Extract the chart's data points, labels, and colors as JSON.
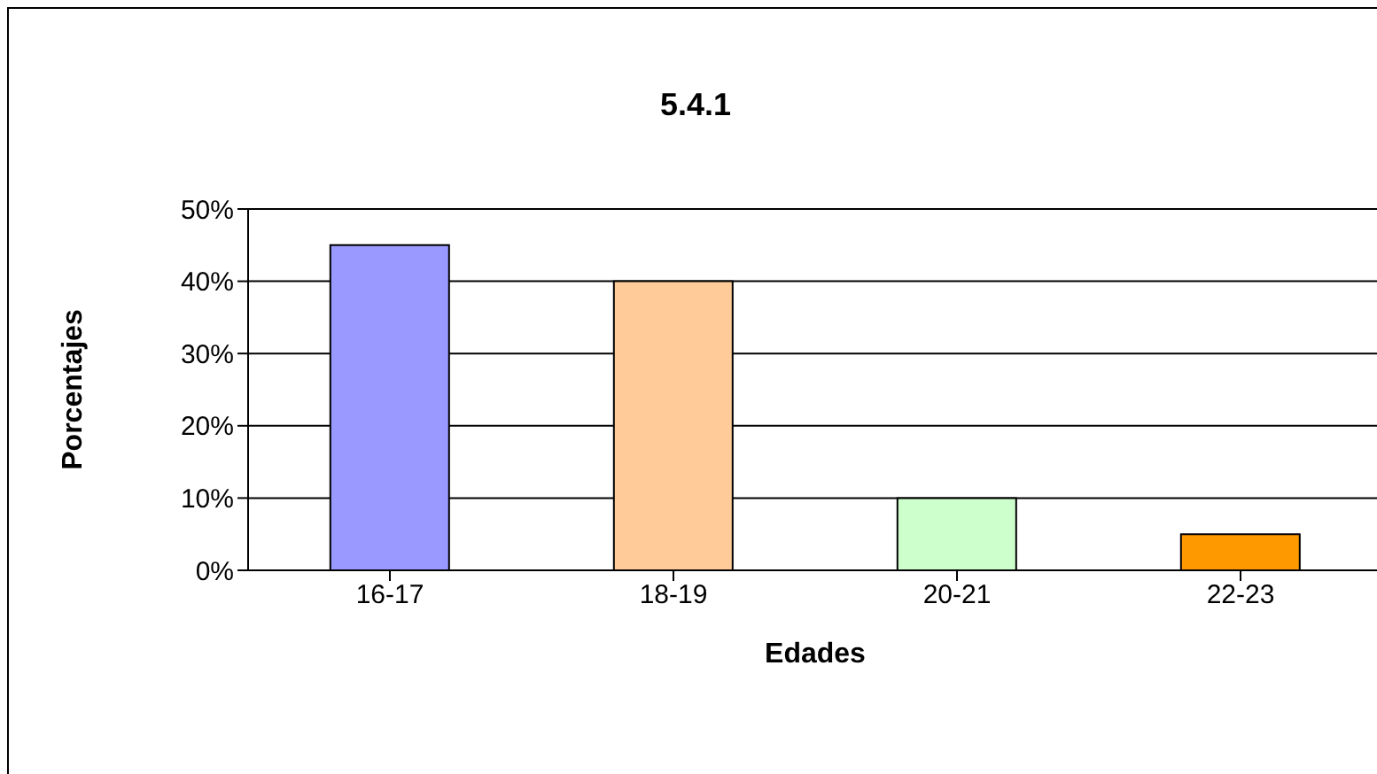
{
  "chart_data": {
    "type": "bar",
    "title": "5.4.1",
    "xlabel": "Edades",
    "ylabel": "Porcentajes",
    "categories": [
      "16-17",
      "18-19",
      "20-21",
      "22-23"
    ],
    "values": [
      45,
      40,
      10,
      5
    ],
    "colors": [
      "#9999ff",
      "#ffcc99",
      "#ccffcc",
      "#ff9900"
    ],
    "ylim": [
      0,
      50
    ],
    "yticks": [
      {
        "value": 0,
        "label": "0%"
      },
      {
        "value": 10,
        "label": "10%"
      },
      {
        "value": 20,
        "label": "20%"
      },
      {
        "value": 30,
        "label": "30%"
      },
      {
        "value": 40,
        "label": "40%"
      },
      {
        "value": 50,
        "label": "50%"
      }
    ],
    "grid": "y",
    "legend": false
  }
}
